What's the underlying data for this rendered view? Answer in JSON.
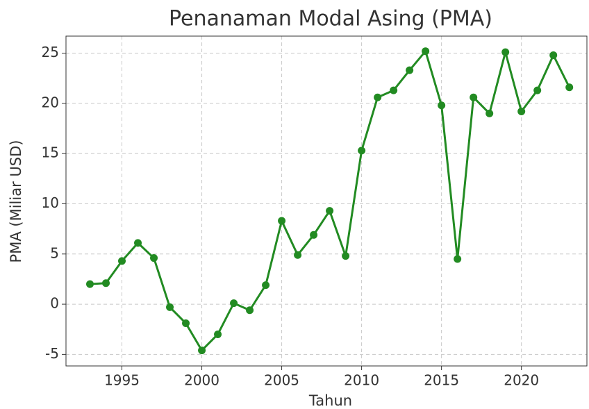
{
  "chart_data": {
    "type": "line",
    "title": "Penanaman Modal Asing (PMA)",
    "xlabel": "Tahun",
    "ylabel": "PMA (Miliar USD)",
    "x": [
      1993,
      1994,
      1995,
      1996,
      1997,
      1998,
      1999,
      2000,
      2001,
      2002,
      2003,
      2004,
      2005,
      2006,
      2007,
      2008,
      2009,
      2010,
      2011,
      2012,
      2013,
      2014,
      2015,
      2016,
      2017,
      2018,
      2019,
      2020,
      2021,
      2022,
      2023
    ],
    "series": [
      {
        "name": "PMA",
        "color": "#228b22",
        "values": [
          2.0,
          2.1,
          4.3,
          6.1,
          4.6,
          -0.3,
          -1.9,
          -4.6,
          -3.0,
          0.1,
          -0.6,
          1.9,
          8.3,
          4.9,
          6.9,
          9.3,
          4.8,
          15.3,
          20.6,
          21.3,
          23.3,
          25.2,
          19.8,
          4.5,
          20.6,
          19.0,
          25.1,
          19.2,
          21.3,
          24.8,
          21.6
        ]
      }
    ],
    "xlim": [
      1991.5,
      2024.1
    ],
    "ylim": [
      -6.15,
      26.7
    ],
    "xticks": [
      1995,
      2000,
      2005,
      2010,
      2015,
      2020
    ],
    "yticks": [
      -5,
      0,
      5,
      10,
      15,
      20,
      25
    ],
    "grid": true
  }
}
